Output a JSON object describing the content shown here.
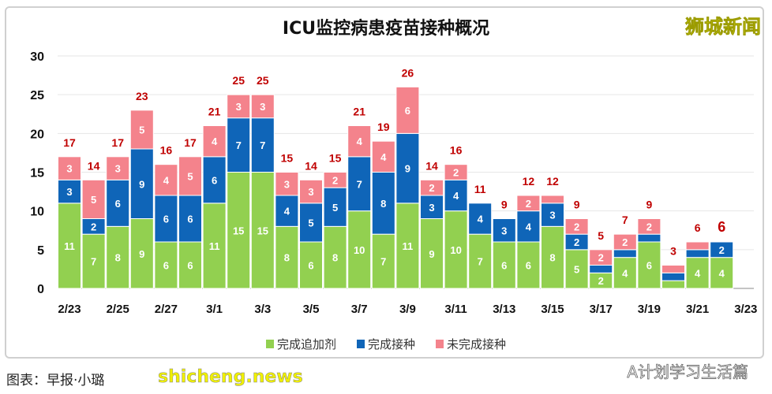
{
  "title": "ICU监控病患疫苗接种概况",
  "brand": "狮城新闻",
  "credit": "图表：早报·小璐",
  "watermark": "shicheng.news",
  "wechat": "A计划学习生活篇",
  "colors": {
    "booster": "#92d050",
    "vaccinated": "#0f65b8",
    "unvaccinated": "#f4838c",
    "total": "#c00000"
  },
  "chart_data": {
    "type": "bar",
    "stacked": true,
    "title": "ICU监控病患疫苗接种概况",
    "ylim": [
      0,
      30
    ],
    "yticks": [
      0,
      5,
      10,
      15,
      20,
      25,
      30
    ],
    "xtick_labels": [
      "2/23",
      "2/25",
      "2/27",
      "3/1",
      "3/3",
      "3/5",
      "3/7",
      "3/9",
      "3/11",
      "3/13",
      "3/15",
      "3/17",
      "3/19",
      "3/21",
      "3/23"
    ],
    "categories": [
      "2/23",
      "2/24",
      "2/25",
      "2/26",
      "2/27",
      "2/28",
      "3/1",
      "3/2",
      "3/3",
      "3/4",
      "3/5",
      "3/6",
      "3/7",
      "3/8",
      "3/9",
      "3/10",
      "3/11",
      "3/12",
      "3/13",
      "3/14",
      "3/15",
      "3/16",
      "3/17",
      "3/18",
      "3/19",
      "3/20",
      "3/21",
      "3/22"
    ],
    "series": [
      {
        "name": "完成追加剂",
        "values": [
          11,
          7,
          8,
          9,
          6,
          6,
          11,
          15,
          15,
          8,
          6,
          8,
          10,
          7,
          11,
          9,
          10,
          7,
          6,
          6,
          8,
          5,
          2,
          4,
          6,
          1,
          4,
          4
        ]
      },
      {
        "name": "完成接种",
        "values": [
          3,
          2,
          6,
          9,
          6,
          6,
          6,
          7,
          7,
          4,
          5,
          5,
          7,
          8,
          9,
          3,
          4,
          4,
          3,
          4,
          3,
          2,
          1,
          1,
          1,
          1,
          1,
          2
        ]
      },
      {
        "name": "未完成接种",
        "values": [
          3,
          5,
          3,
          5,
          4,
          5,
          4,
          3,
          3,
          3,
          3,
          2,
          4,
          4,
          6,
          2,
          2,
          0,
          0,
          2,
          1,
          2,
          2,
          2,
          2,
          1,
          1,
          0
        ]
      }
    ],
    "totals": [
      17,
      14,
      17,
      23,
      16,
      17,
      21,
      25,
      25,
      15,
      14,
      15,
      21,
      19,
      26,
      14,
      16,
      11,
      9,
      12,
      12,
      9,
      5,
      7,
      9,
      3,
      6,
      6
    ],
    "legend": "bottom",
    "grid": true
  }
}
